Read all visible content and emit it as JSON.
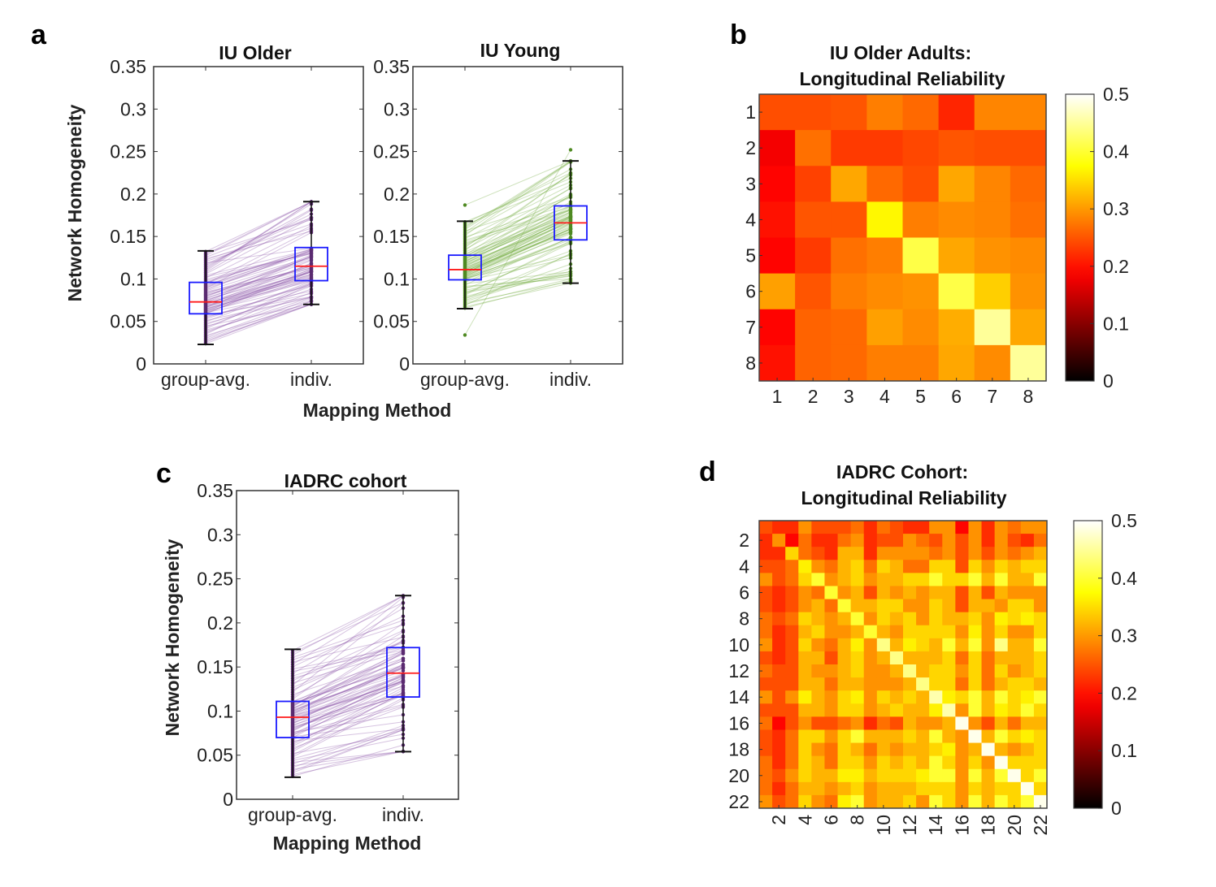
{
  "panels": {
    "a": {
      "letter": "a",
      "ylabel": "Network Homogeneity",
      "xlabel": "Mapping Method"
    },
    "b": {
      "letter": "b"
    },
    "c": {
      "letter": "c",
      "ylabel": "Network Homogeneity",
      "xlabel": "Mapping Method"
    },
    "d": {
      "letter": "d"
    }
  },
  "colors": {
    "box": "#1a1aff",
    "median": "#ff1a1a",
    "whisker": "#111111",
    "older": "#8b55a8",
    "young": "#74ad3e",
    "iadrc": "#8b55a8"
  },
  "chart_data": [
    {
      "id": "iu_older",
      "type": "boxplot",
      "title": "IU Older",
      "categories": [
        "group-avg.",
        "indiv."
      ],
      "ylim": [
        0,
        0.35
      ],
      "yticks": [
        "0",
        "0.05",
        "0.1",
        "0.15",
        "0.2",
        "0.25",
        "0.3",
        "0.35"
      ],
      "series": [
        {
          "category": "group-avg.",
          "whisker_low": 0.023,
          "q1": 0.059,
          "median": 0.073,
          "q3": 0.096,
          "whisker_high": 0.133,
          "outliers": []
        },
        {
          "category": "indiv.",
          "whisker_low": 0.07,
          "q1": 0.098,
          "median": 0.115,
          "q3": 0.137,
          "whisker_high": 0.191,
          "outliers": []
        }
      ]
    },
    {
      "id": "iu_young",
      "type": "boxplot",
      "title": "IU Young",
      "categories": [
        "group-avg.",
        "indiv."
      ],
      "ylim": [
        0,
        0.35
      ],
      "yticks": [
        "0",
        "0.05",
        "0.1",
        "0.15",
        "0.2",
        "0.25",
        "0.3",
        "0.35"
      ],
      "series": [
        {
          "category": "group-avg.",
          "whisker_low": 0.065,
          "q1": 0.099,
          "median": 0.111,
          "q3": 0.128,
          "whisker_high": 0.168,
          "outliers": [
            0.034,
            0.187
          ]
        },
        {
          "category": "indiv.",
          "whisker_low": 0.095,
          "q1": 0.146,
          "median": 0.166,
          "q3": 0.186,
          "whisker_high": 0.239,
          "outliers": [
            0.252
          ]
        }
      ]
    },
    {
      "id": "iadrc",
      "type": "boxplot",
      "title": "IADRC cohort",
      "categories": [
        "group-avg.",
        "indiv."
      ],
      "ylim": [
        0,
        0.35
      ],
      "yticks": [
        "0",
        "0.05",
        "0.1",
        "0.15",
        "0.2",
        "0.25",
        "0.3",
        "0.35"
      ],
      "series": [
        {
          "category": "group-avg.",
          "whisker_low": 0.025,
          "q1": 0.07,
          "median": 0.093,
          "q3": 0.111,
          "whisker_high": 0.17,
          "outliers": []
        },
        {
          "category": "indiv.",
          "whisker_low": 0.054,
          "q1": 0.116,
          "median": 0.143,
          "q3": 0.172,
          "whisker_high": 0.231,
          "outliers": []
        }
      ]
    },
    {
      "id": "iu_older_reliability",
      "type": "heatmap",
      "title": [
        "IU Older Adults:",
        "Longitudinal Reliability"
      ],
      "colormap": "hot",
      "clim": [
        0,
        0.5
      ],
      "colorbar_ticks": [
        "0",
        "0.1",
        "0.2",
        "0.3",
        "0.4",
        "0.5"
      ],
      "xticks": [
        "1",
        "2",
        "3",
        "4",
        "5",
        "6",
        "7",
        "8"
      ],
      "yticks": [
        "1",
        "2",
        "3",
        "4",
        "5",
        "6",
        "7",
        "8"
      ],
      "values": [
        [
          0.245,
          0.245,
          0.25,
          0.28,
          0.265,
          0.215,
          0.285,
          0.285
        ],
        [
          0.18,
          0.27,
          0.23,
          0.23,
          0.24,
          0.25,
          0.245,
          0.245
        ],
        [
          0.19,
          0.235,
          0.31,
          0.265,
          0.245,
          0.31,
          0.285,
          0.265
        ],
        [
          0.2,
          0.25,
          0.25,
          0.37,
          0.28,
          0.29,
          0.285,
          0.27
        ],
        [
          0.19,
          0.23,
          0.27,
          0.28,
          0.41,
          0.31,
          0.295,
          0.29
        ],
        [
          0.305,
          0.25,
          0.28,
          0.29,
          0.295,
          0.41,
          0.34,
          0.295
        ],
        [
          0.19,
          0.26,
          0.265,
          0.305,
          0.29,
          0.315,
          0.45,
          0.31
        ],
        [
          0.2,
          0.26,
          0.265,
          0.28,
          0.28,
          0.31,
          0.29,
          0.45
        ]
      ]
    },
    {
      "id": "iadrc_reliability",
      "type": "heatmap",
      "title": [
        "IADRC Cohort:",
        "Longitudinal Reliability"
      ],
      "colormap": "hot",
      "clim": [
        0,
        0.5
      ],
      "colorbar_ticks": [
        "0",
        "0.1",
        "0.2",
        "0.3",
        "0.4",
        "0.5"
      ],
      "xticks": [
        "2",
        "4",
        "6",
        "8",
        "10",
        "12",
        "14",
        "16",
        "18",
        "20",
        "22"
      ],
      "yticks": [
        "2",
        "4",
        "6",
        "8",
        "10",
        "12",
        "14",
        "16",
        "18",
        "20",
        "22"
      ],
      "values": [
        [
          0.245,
          0.22,
          0.22,
          0.295,
          0.245,
          0.245,
          0.245,
          0.27,
          0.22,
          0.27,
          0.245,
          0.22,
          0.22,
          0.295,
          0.295,
          0.19,
          0.295,
          0.22,
          0.295,
          0.27,
          0.295,
          0.295
        ],
        [
          0.22,
          0.295,
          0.19,
          0.27,
          0.22,
          0.22,
          0.27,
          0.295,
          0.22,
          0.245,
          0.245,
          0.295,
          0.27,
          0.245,
          0.295,
          0.245,
          0.295,
          0.22,
          0.295,
          0.245,
          0.22,
          0.27
        ],
        [
          0.22,
          0.22,
          0.345,
          0.27,
          0.245,
          0.22,
          0.32,
          0.32,
          0.22,
          0.295,
          0.295,
          0.295,
          0.295,
          0.27,
          0.295,
          0.245,
          0.295,
          0.245,
          0.295,
          0.27,
          0.295,
          0.32
        ],
        [
          0.245,
          0.245,
          0.27,
          0.365,
          0.295,
          0.27,
          0.32,
          0.345,
          0.27,
          0.345,
          0.32,
          0.27,
          0.27,
          0.345,
          0.345,
          0.245,
          0.345,
          0.295,
          0.345,
          0.32,
          0.345,
          0.345
        ],
        [
          0.295,
          0.245,
          0.27,
          0.345,
          0.4,
          0.295,
          0.32,
          0.345,
          0.295,
          0.32,
          0.32,
          0.345,
          0.345,
          0.4,
          0.345,
          0.345,
          0.4,
          0.32,
          0.4,
          0.32,
          0.32,
          0.4
        ],
        [
          0.245,
          0.22,
          0.245,
          0.295,
          0.27,
          0.4,
          0.295,
          0.32,
          0.245,
          0.32,
          0.295,
          0.32,
          0.295,
          0.32,
          0.32,
          0.245,
          0.32,
          0.245,
          0.32,
          0.295,
          0.295,
          0.295
        ],
        [
          0.245,
          0.22,
          0.245,
          0.295,
          0.32,
          0.27,
          0.4,
          0.32,
          0.32,
          0.345,
          0.345,
          0.295,
          0.295,
          0.345,
          0.32,
          0.245,
          0.32,
          0.32,
          0.295,
          0.345,
          0.345,
          0.295
        ],
        [
          0.27,
          0.245,
          0.27,
          0.345,
          0.32,
          0.295,
          0.32,
          0.4,
          0.295,
          0.345,
          0.32,
          0.345,
          0.295,
          0.345,
          0.32,
          0.32,
          0.345,
          0.295,
          0.365,
          0.345,
          0.365,
          0.345
        ],
        [
          0.27,
          0.22,
          0.245,
          0.32,
          0.345,
          0.295,
          0.295,
          0.32,
          0.4,
          0.32,
          0.295,
          0.345,
          0.345,
          0.345,
          0.345,
          0.295,
          0.365,
          0.295,
          0.345,
          0.295,
          0.295,
          0.345
        ],
        [
          0.295,
          0.22,
          0.245,
          0.345,
          0.295,
          0.27,
          0.32,
          0.365,
          0.295,
          0.44,
          0.32,
          0.365,
          0.345,
          0.32,
          0.4,
          0.32,
          0.4,
          0.295,
          0.44,
          0.32,
          0.32,
          0.4
        ],
        [
          0.245,
          0.22,
          0.245,
          0.32,
          0.32,
          0.245,
          0.32,
          0.345,
          0.295,
          0.32,
          0.44,
          0.32,
          0.32,
          0.32,
          0.345,
          0.27,
          0.345,
          0.27,
          0.32,
          0.32,
          0.32,
          0.345
        ],
        [
          0.27,
          0.245,
          0.245,
          0.32,
          0.295,
          0.295,
          0.32,
          0.345,
          0.295,
          0.295,
          0.32,
          0.44,
          0.32,
          0.345,
          0.345,
          0.295,
          0.345,
          0.27,
          0.345,
          0.295,
          0.32,
          0.345
        ],
        [
          0.245,
          0.245,
          0.245,
          0.32,
          0.32,
          0.27,
          0.32,
          0.32,
          0.295,
          0.295,
          0.295,
          0.32,
          0.44,
          0.345,
          0.345,
          0.27,
          0.345,
          0.27,
          0.32,
          0.345,
          0.345,
          0.32
        ],
        [
          0.295,
          0.245,
          0.295,
          0.365,
          0.32,
          0.295,
          0.345,
          0.365,
          0.295,
          0.345,
          0.32,
          0.345,
          0.32,
          0.46,
          0.365,
          0.345,
          0.4,
          0.32,
          0.4,
          0.345,
          0.365,
          0.4
        ],
        [
          0.245,
          0.245,
          0.245,
          0.32,
          0.32,
          0.295,
          0.345,
          0.345,
          0.295,
          0.32,
          0.345,
          0.32,
          0.32,
          0.365,
          0.46,
          0.295,
          0.4,
          0.32,
          0.365,
          0.345,
          0.4,
          0.345
        ],
        [
          0.27,
          0.19,
          0.245,
          0.295,
          0.245,
          0.245,
          0.27,
          0.295,
          0.22,
          0.27,
          0.245,
          0.32,
          0.295,
          0.295,
          0.32,
          0.49,
          0.295,
          0.245,
          0.32,
          0.27,
          0.32,
          0.32
        ],
        [
          0.245,
          0.22,
          0.27,
          0.345,
          0.345,
          0.295,
          0.345,
          0.4,
          0.32,
          0.32,
          0.32,
          0.345,
          0.32,
          0.4,
          0.32,
          0.295,
          0.49,
          0.32,
          0.4,
          0.345,
          0.365,
          0.345
        ],
        [
          0.245,
          0.22,
          0.27,
          0.345,
          0.295,
          0.27,
          0.345,
          0.32,
          0.27,
          0.32,
          0.295,
          0.32,
          0.32,
          0.345,
          0.365,
          0.295,
          0.32,
          0.49,
          0.32,
          0.295,
          0.32,
          0.345
        ],
        [
          0.27,
          0.22,
          0.27,
          0.345,
          0.32,
          0.27,
          0.345,
          0.345,
          0.295,
          0.345,
          0.32,
          0.345,
          0.32,
          0.4,
          0.345,
          0.295,
          0.345,
          0.295,
          0.49,
          0.345,
          0.345,
          0.345
        ],
        [
          0.27,
          0.245,
          0.295,
          0.345,
          0.32,
          0.32,
          0.365,
          0.365,
          0.32,
          0.345,
          0.345,
          0.345,
          0.365,
          0.4,
          0.4,
          0.295,
          0.4,
          0.32,
          0.4,
          0.49,
          0.345,
          0.4
        ],
        [
          0.27,
          0.22,
          0.27,
          0.32,
          0.32,
          0.295,
          0.32,
          0.345,
          0.295,
          0.32,
          0.32,
          0.32,
          0.345,
          0.345,
          0.345,
          0.295,
          0.345,
          0.32,
          0.345,
          0.345,
          0.49,
          0.345
        ],
        [
          0.295,
          0.245,
          0.27,
          0.345,
          0.295,
          0.27,
          0.365,
          0.4,
          0.295,
          0.32,
          0.32,
          0.345,
          0.295,
          0.4,
          0.345,
          0.295,
          0.4,
          0.32,
          0.4,
          0.345,
          0.4,
          0.49
        ]
      ]
    }
  ]
}
